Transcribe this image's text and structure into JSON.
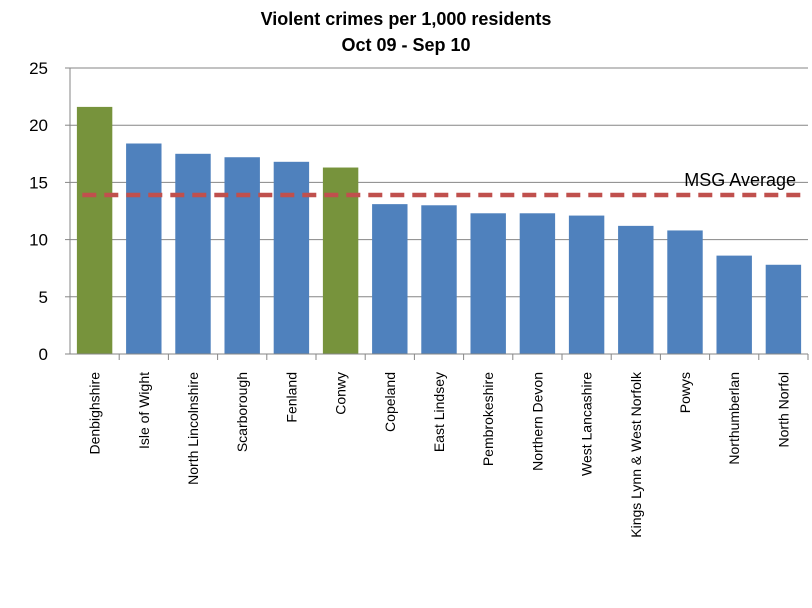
{
  "chart_data": {
    "type": "bar",
    "title": "Violent crimes per 1,000 residents",
    "subtitle": "Oct 09 - Sep 10",
    "xlabel": "",
    "ylabel": "",
    "ylim": [
      0,
      25
    ],
    "yticks": [
      "0",
      "5",
      "10",
      "15",
      "20",
      "25"
    ],
    "grid": true,
    "categories": [
      "Denbighshire",
      "Isle of Wight",
      "North Lincolnshire",
      "Scarborough",
      "Fenland",
      "Conwy",
      "Copeland",
      "East Lindsey",
      "Pembrokeshire",
      "Northern Devon",
      "West Lancashire",
      "Kings Lynn & West Norfolk",
      "Powys",
      "Northumberlan",
      "North Norfol"
    ],
    "values": [
      21.6,
      18.4,
      17.5,
      17.2,
      16.8,
      16.3,
      13.1,
      13.0,
      12.3,
      12.3,
      12.1,
      11.2,
      10.8,
      8.6,
      7.8
    ],
    "highlight": [
      true,
      false,
      false,
      false,
      false,
      true,
      false,
      false,
      false,
      false,
      false,
      false,
      false,
      false,
      false
    ],
    "colors": {
      "bar": "#4f81bd",
      "highlight": "#77933c",
      "average": "#c0504d",
      "grid": "#868686"
    },
    "average": {
      "label": "MSG Average",
      "value": 13.9
    }
  }
}
